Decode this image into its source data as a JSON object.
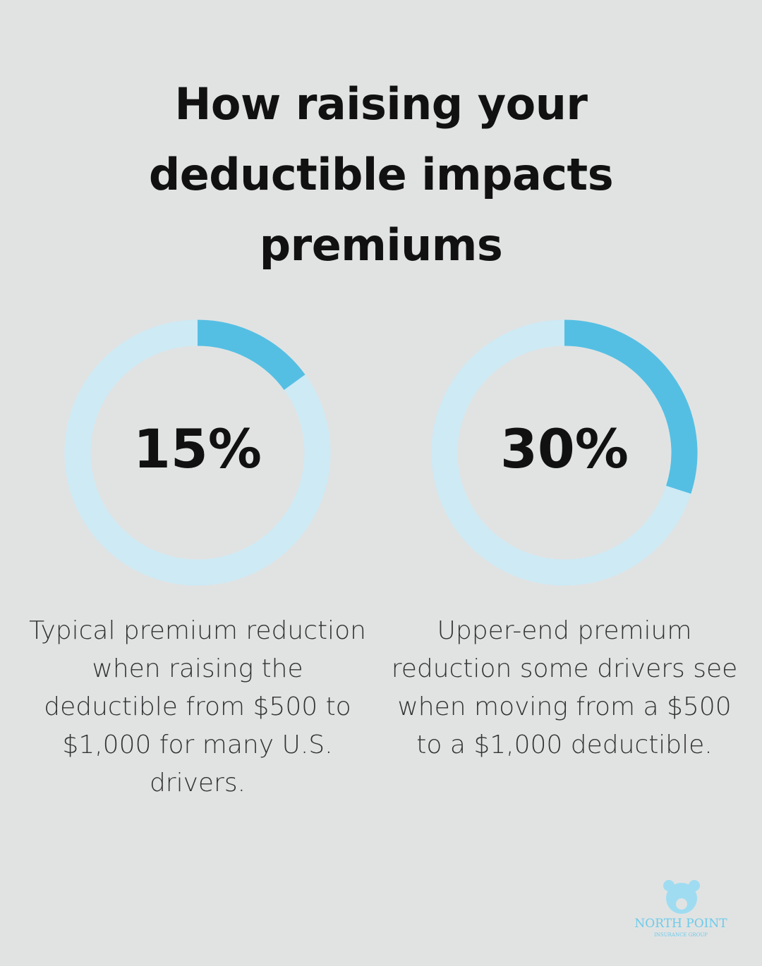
{
  "title": "How raising your deductible impacts premiums",
  "chart_data": [
    {
      "type": "donut",
      "values": [
        15
      ],
      "value_labels": [
        "15%"
      ],
      "color": "#55bfe3",
      "track_color": "#cdeaf5",
      "caption": "Typical premium reduction when raising the deductible from $500 to $1,000 for many U.S. drivers."
    },
    {
      "type": "donut",
      "values": [
        30
      ],
      "value_labels": [
        "30%"
      ],
      "color": "#55bfe3",
      "track_color": "#cdeaf5",
      "caption": "Upper-end premium reduction some drivers see when moving from a $500 to a $1,000 deductible."
    }
  ],
  "logo": {
    "name": "NORTH POINT",
    "tagline": "INSURANCE GROUP"
  }
}
